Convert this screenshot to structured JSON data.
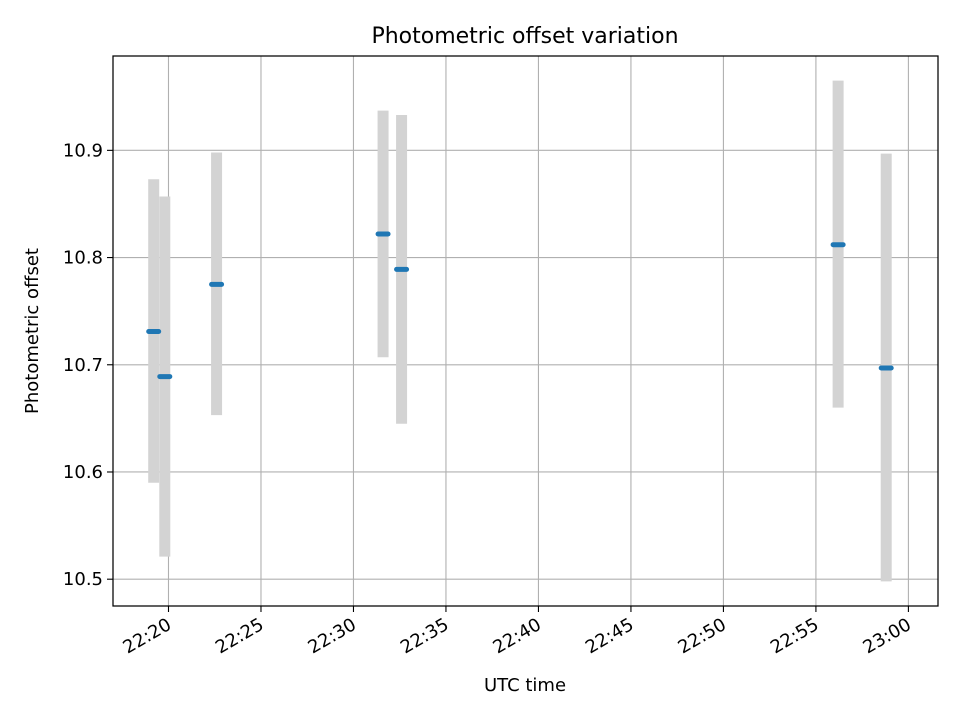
{
  "chart_data": {
    "type": "scatter",
    "title": "Photometric offset variation",
    "xlabel": "UTC time",
    "ylabel": "Photometric offset",
    "xlim": [
      "22:17",
      "23:01.6"
    ],
    "ylim": [
      10.475,
      10.988
    ],
    "grid": true,
    "x_ticks": [
      "22:20",
      "22:25",
      "22:30",
      "22:35",
      "22:40",
      "22:45",
      "22:50",
      "22:55",
      "23:00"
    ],
    "y_ticks": [
      "10.5",
      "10.6",
      "10.7",
      "10.8",
      "10.9"
    ],
    "colors": {
      "point": "#1f77b4",
      "errorbar": "#d3d3d3",
      "grid": "#b0b0b0"
    },
    "points": [
      {
        "time": "22:19:12",
        "value": 10.731,
        "err_low": 10.59,
        "err_high": 10.873
      },
      {
        "time": "22:19:48",
        "value": 10.689,
        "err_low": 10.521,
        "err_high": 10.857
      },
      {
        "time": "22:22:36",
        "value": 10.775,
        "err_low": 10.653,
        "err_high": 10.898
      },
      {
        "time": "22:31:36",
        "value": 10.822,
        "err_low": 10.707,
        "err_high": 10.937
      },
      {
        "time": "22:32:36",
        "value": 10.789,
        "err_low": 10.645,
        "err_high": 10.933
      },
      {
        "time": "22:56:12",
        "value": 10.812,
        "err_low": 10.66,
        "err_high": 10.965
      },
      {
        "time": "22:58:48",
        "value": 10.697,
        "err_low": 10.498,
        "err_high": 10.897
      }
    ]
  }
}
